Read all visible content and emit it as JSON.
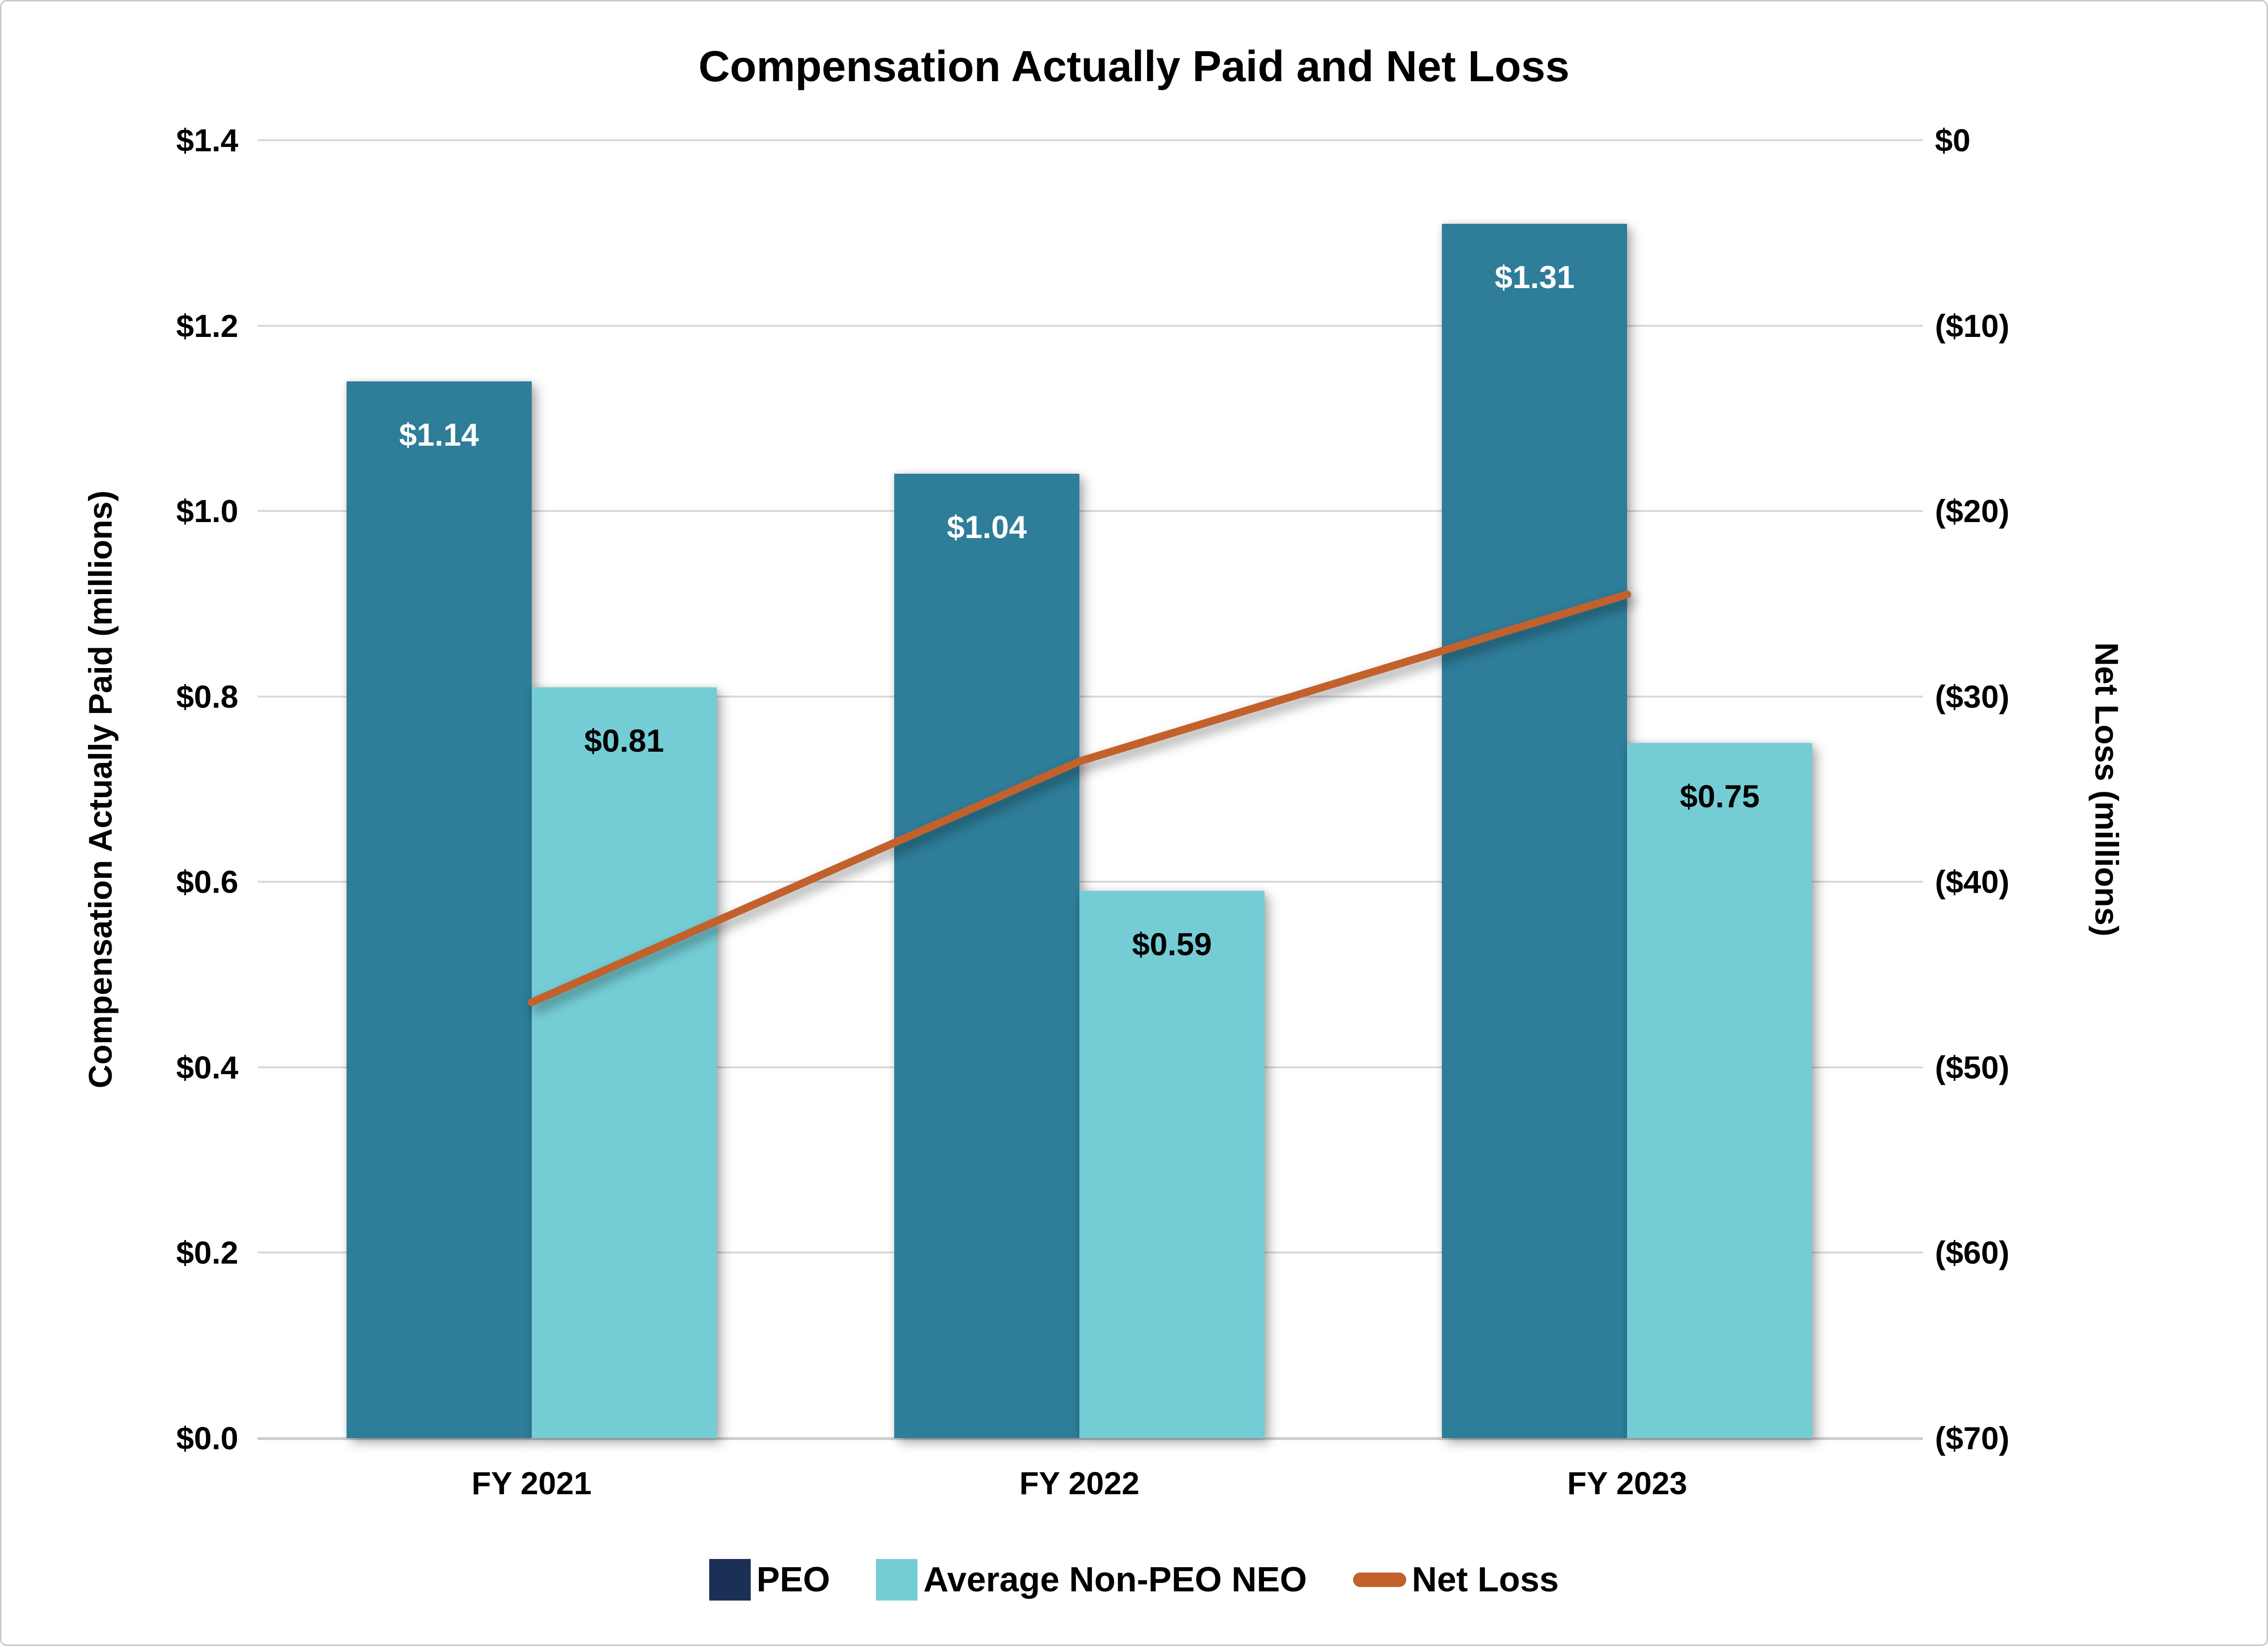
{
  "title": "Compensation Actually Paid and Net Loss",
  "chart_data": {
    "type": "bar+line",
    "categories": [
      "FY 2021",
      "FY 2022",
      "FY 2023"
    ],
    "bar_series": [
      {
        "name": "PEO",
        "values": [
          1.14,
          1.04,
          1.31
        ],
        "labels": [
          "$1.14",
          "$1.04",
          "$1.31"
        ],
        "bar_color": "#2E7D99",
        "label_color": "#FFFFFF",
        "legend_color": "#1B3055"
      },
      {
        "name": "Average Non-PEO NEO",
        "values": [
          0.81,
          0.59,
          0.75
        ],
        "labels": [
          "$0.81",
          "$0.59",
          "$0.75"
        ],
        "bar_color": "#74CDD5",
        "label_color": "#000000",
        "legend_color": "#74CDD5"
      }
    ],
    "line_series": {
      "name": "Net Loss",
      "values": [
        -46.5,
        -33.5,
        -24.5
      ],
      "color": "#C2612C",
      "axis": "right"
    },
    "left_axis": {
      "title": "Compensation Actually Paid (millions)",
      "ticks": [
        "$1.4",
        "$1.2",
        "$1.0",
        "$0.8",
        "$0.6",
        "$0.4",
        "$0.2",
        "$0.0"
      ],
      "min": 0,
      "max": 1.4
    },
    "right_axis": {
      "title": "Net Loss (millions)",
      "ticks": [
        "$0",
        "($10)",
        "($20)",
        "($30)",
        "($40)",
        "($50)",
        "($60)",
        "($70)"
      ],
      "min": -70,
      "max": 0
    },
    "grid": {
      "horizontal": true,
      "vertical": false,
      "color": "#D9D9D9"
    },
    "legend_position": "bottom"
  },
  "legend": {
    "items": [
      {
        "label": "PEO",
        "swatch": "square",
        "color": "#1B3055"
      },
      {
        "label": "Average Non-PEO NEO",
        "swatch": "square",
        "color": "#74CDD5"
      },
      {
        "label": "Net Loss",
        "swatch": "line",
        "color": "#C2612C"
      }
    ]
  },
  "colors": {
    "background": "#FFFFFF",
    "text": "#000000",
    "gridline": "#D9D9D9",
    "peo_bar": "#2E7D99",
    "neo_bar": "#74CDD5",
    "net_loss_line": "#C2612C",
    "peo_legend": "#1B3055"
  }
}
